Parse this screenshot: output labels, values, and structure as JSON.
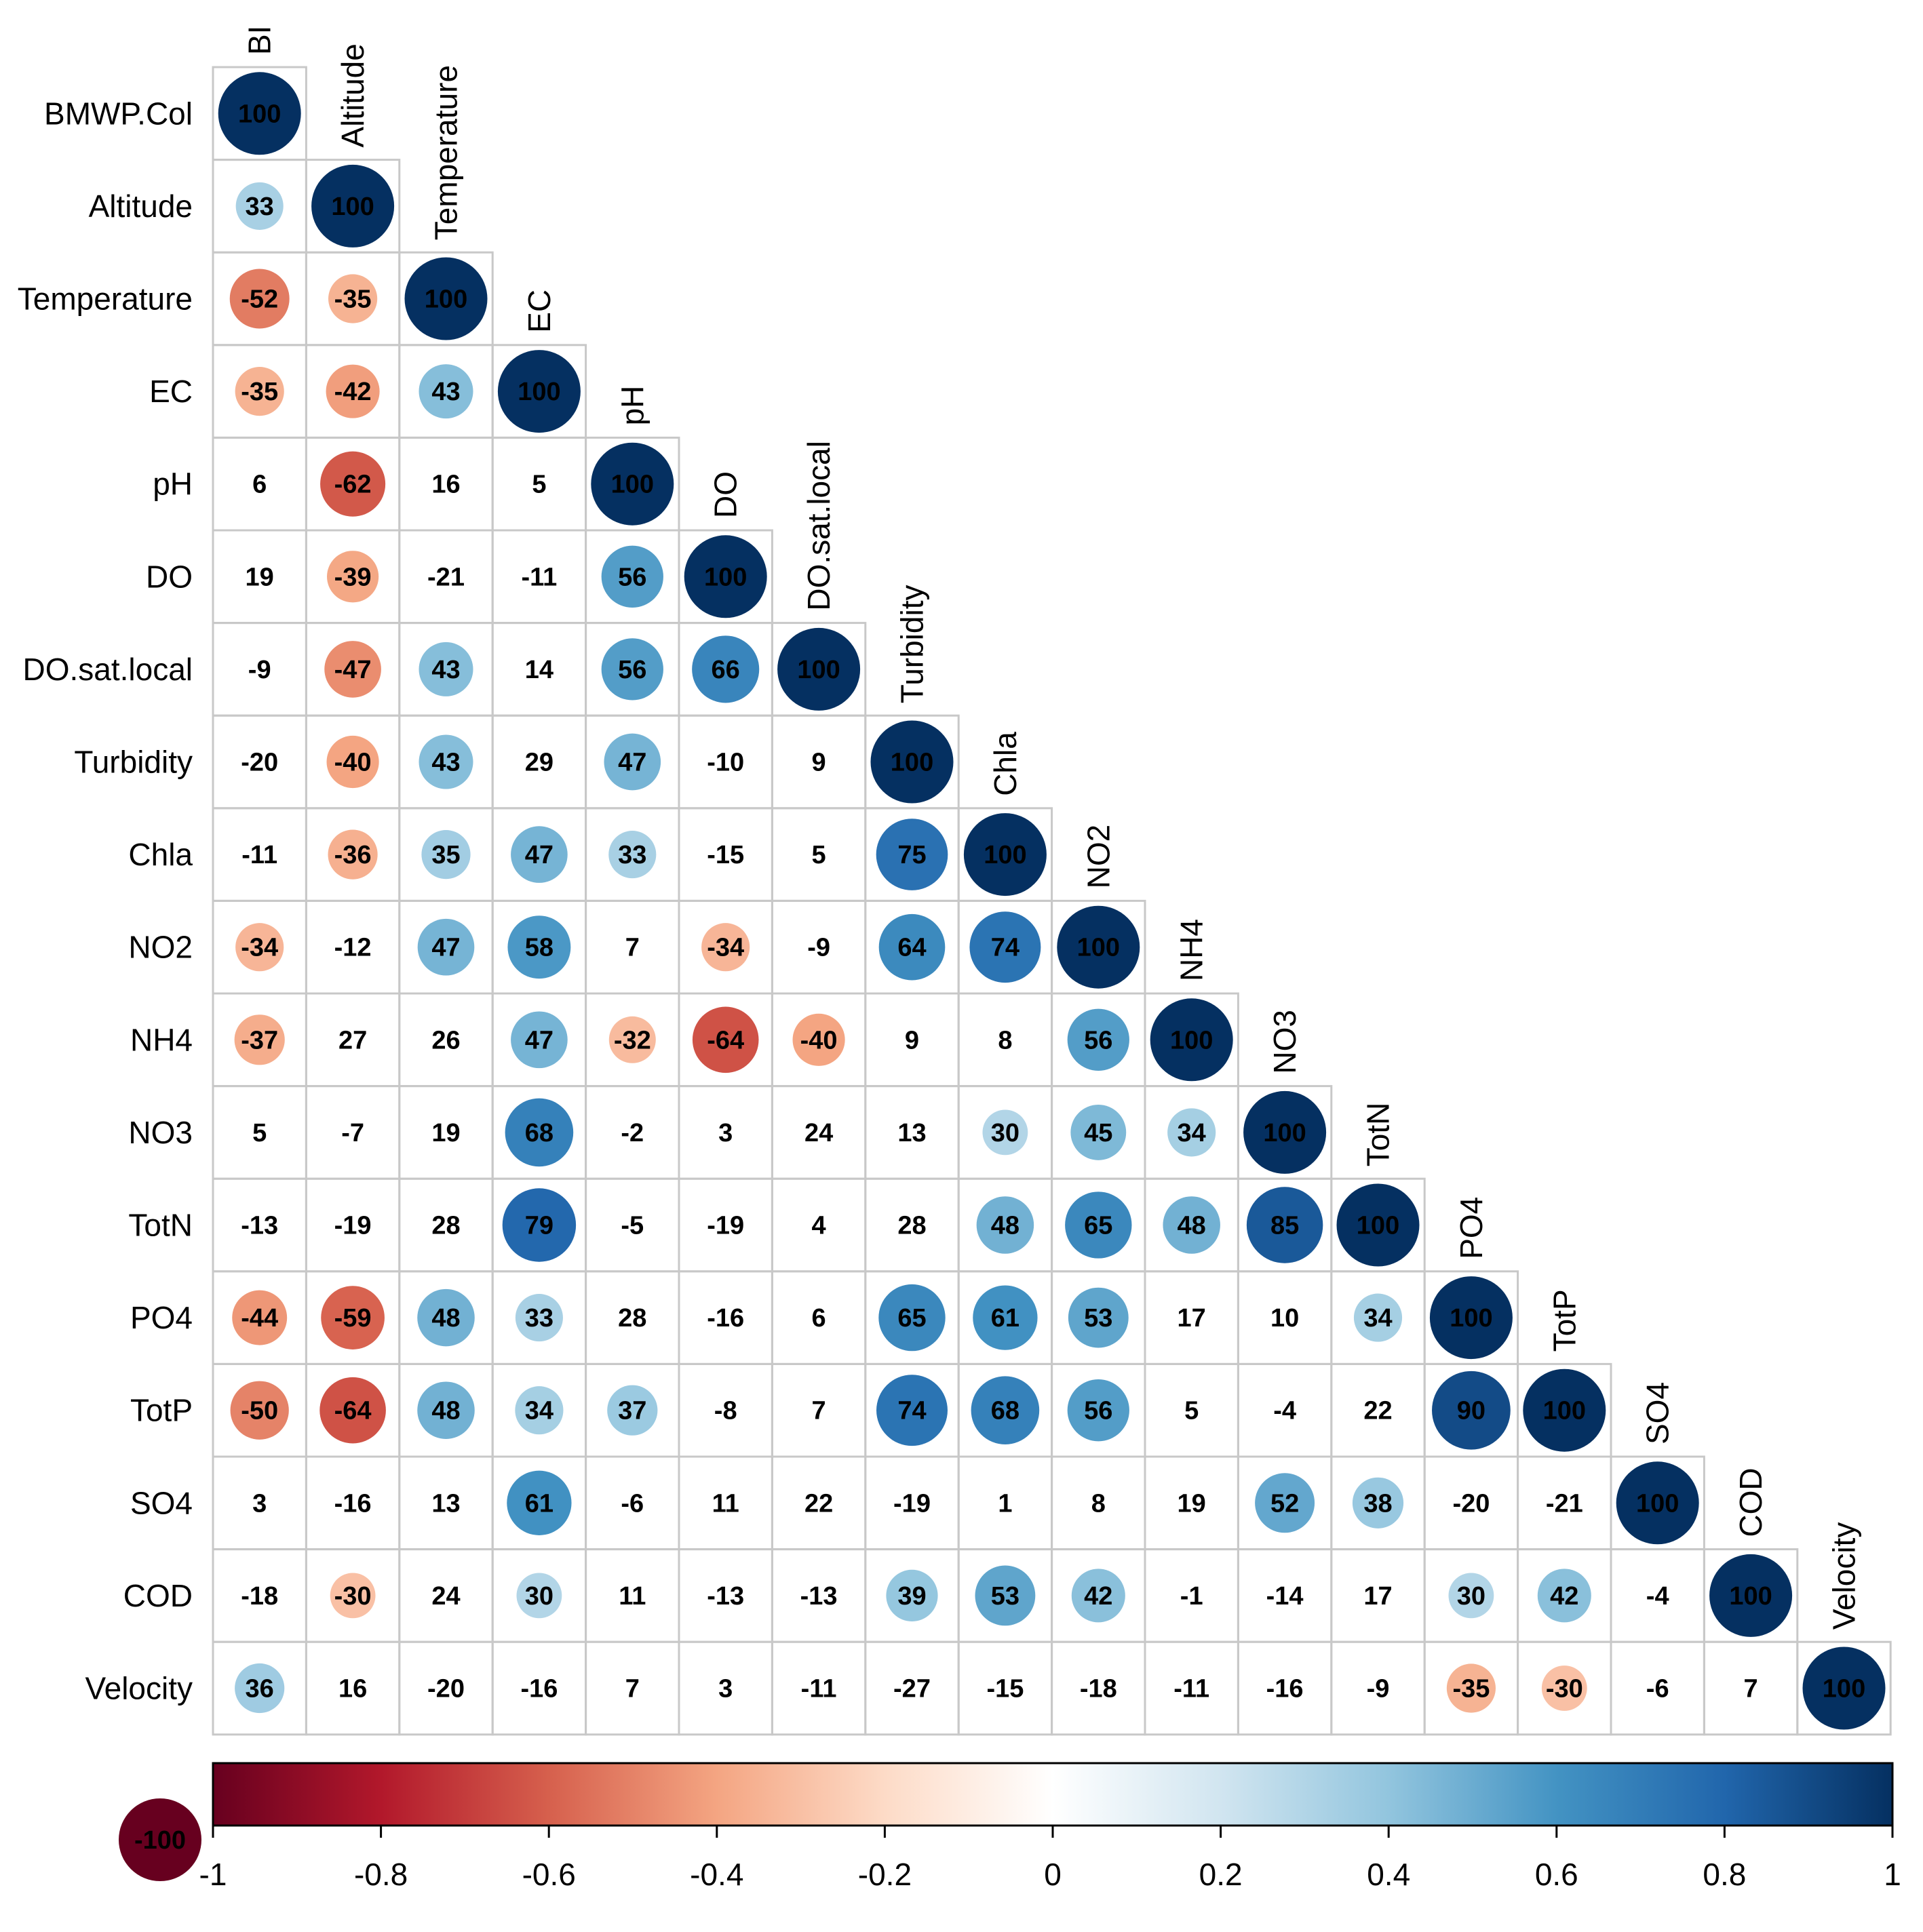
{
  "chart_data": {
    "type": "heatmap",
    "subtype": "lower-triangle correlation matrix (circles)",
    "value_scale": "x100",
    "row_labels": [
      "BMWP.Col",
      "Altitude",
      "Temperature",
      "EC",
      "pH",
      "DO",
      "DO.sat.local",
      "Turbidity",
      "Chla",
      "NO2",
      "NH4",
      "NO3",
      "TotN",
      "PO4",
      "TotP",
      "SO4",
      "COD",
      "Velocity"
    ],
    "col_labels": [
      "BI",
      "Altitude",
      "Temperature",
      "EC",
      "pH",
      "DO",
      "DO.sat.local",
      "Turbidity",
      "Chla",
      "NO2",
      "NH4",
      "NO3",
      "TotN",
      "PO4",
      "TotP",
      "SO4",
      "COD",
      "Velocity"
    ],
    "matrix": [
      [
        100
      ],
      [
        33,
        100
      ],
      [
        -52,
        -35,
        100
      ],
      [
        -35,
        -42,
        43,
        100
      ],
      [
        6,
        -62,
        16,
        5,
        100
      ],
      [
        19,
        -39,
        -21,
        -11,
        56,
        100
      ],
      [
        -9,
        -47,
        43,
        14,
        56,
        66,
        100
      ],
      [
        -20,
        -40,
        43,
        29,
        47,
        -10,
        9,
        100
      ],
      [
        -11,
        -36,
        35,
        47,
        33,
        -15,
        5,
        75,
        100
      ],
      [
        -34,
        -12,
        47,
        58,
        7,
        -34,
        -9,
        64,
        74,
        100
      ],
      [
        -37,
        27,
        26,
        47,
        -32,
        -64,
        -40,
        9,
        8,
        56,
        100
      ],
      [
        5,
        -7,
        19,
        68,
        -2,
        3,
        24,
        13,
        30,
        45,
        34,
        100
      ],
      [
        -13,
        -19,
        28,
        79,
        -5,
        -19,
        4,
        28,
        48,
        65,
        48,
        85,
        100
      ],
      [
        -44,
        -59,
        48,
        33,
        28,
        -16,
        6,
        65,
        61,
        53,
        17,
        10,
        34,
        100
      ],
      [
        -50,
        -64,
        48,
        34,
        37,
        -8,
        7,
        74,
        68,
        56,
        5,
        -4,
        22,
        90,
        100
      ],
      [
        3,
        -16,
        13,
        61,
        -6,
        11,
        22,
        -19,
        1,
        8,
        19,
        52,
        38,
        -20,
        -21,
        100
      ],
      [
        -18,
        -30,
        24,
        30,
        11,
        -13,
        -13,
        39,
        53,
        42,
        -1,
        -14,
        17,
        30,
        42,
        -4,
        100
      ],
      [
        36,
        16,
        -20,
        -16,
        7,
        3,
        -11,
        -27,
        -15,
        -18,
        -11,
        -16,
        -9,
        -35,
        -30,
        -6,
        7,
        100
      ]
    ],
    "colorbar": {
      "ticks": [
        "-1",
        "-0.8",
        "-0.6",
        "-0.4",
        "-0.2",
        "0",
        "0.2",
        "0.4",
        "0.6",
        "0.8",
        "1"
      ],
      "range": [
        -1,
        1
      ],
      "colors": [
        "#67001F",
        "#B2182B",
        "#D6604D",
        "#F4A582",
        "#FDDBC7",
        "#FFFFFF",
        "#D1E5F0",
        "#92C5DE",
        "#4393C3",
        "#2166AC",
        "#053061"
      ]
    },
    "legend_marker_label": "-100",
    "legend_marker_color": "#67001F"
  }
}
